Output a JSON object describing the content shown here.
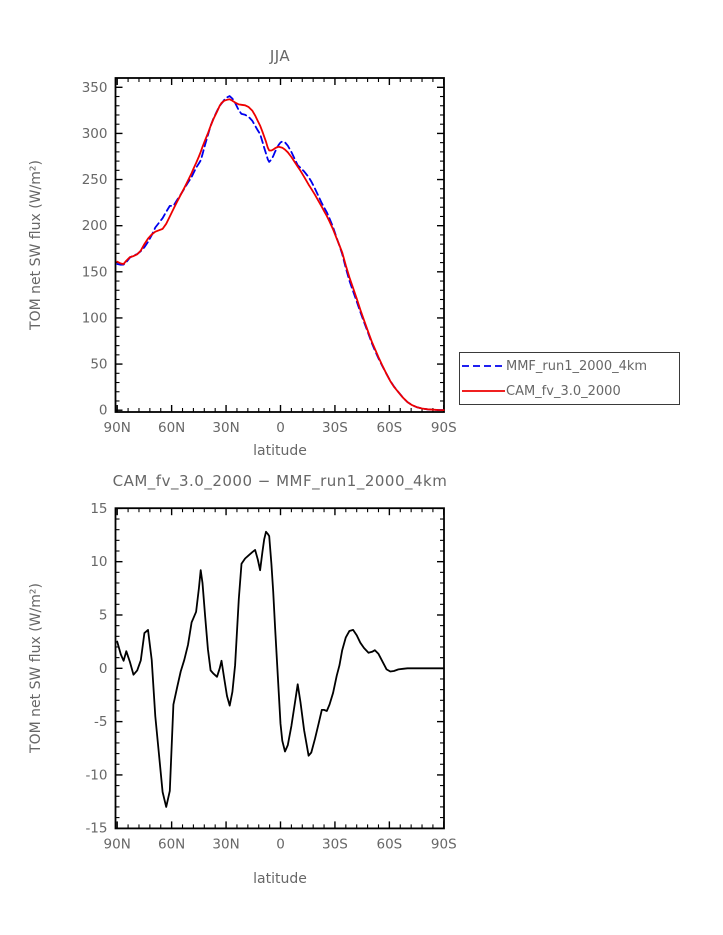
{
  "page_background": "#ffffff",
  "colors": {
    "axis": "#000000",
    "text": "#676767",
    "mmf_line": "#0000ee",
    "cam_line": "#ee0000",
    "diff_line": "#000000"
  },
  "legend": {
    "entries": [
      {
        "label": "MMF_run1_2000_4km",
        "color": "#0000ee",
        "style": "dashed"
      },
      {
        "label": "CAM_fv_3.0_2000",
        "color": "#ee0000",
        "style": "solid"
      }
    ]
  },
  "chart_data": [
    {
      "type": "line",
      "title": "JJA",
      "xlabel": "latitude",
      "ylabel": "TOM net SW flux (W/m²)",
      "ylim": [
        0,
        350
      ],
      "xlim_deg_north": [
        90,
        -90
      ],
      "grid": false,
      "legend_position": "outside-right-bottom",
      "x_ticks": {
        "major_lats": [
          90,
          60,
          30,
          0,
          -30,
          -60,
          -90
        ],
        "major_labels": [
          "90N",
          "60N",
          "30N",
          "0",
          "30S",
          "60S",
          "90S"
        ],
        "minor_step_deg": 6
      },
      "y_ticks": {
        "major_values": [
          0,
          50,
          100,
          150,
          200,
          250,
          300,
          350
        ],
        "major_labels": [
          "0",
          "50",
          "100",
          "150",
          "200",
          "250",
          "300",
          "350"
        ],
        "minor_step": 10
      },
      "x": [
        90,
        88,
        86.5,
        85,
        83,
        81,
        79,
        77,
        75,
        73,
        71,
        69,
        67,
        65,
        63,
        61,
        59,
        57,
        55,
        53,
        51,
        49,
        48,
        46.5,
        45,
        44,
        43,
        41.5,
        40,
        38.5,
        37,
        35,
        33.5,
        32.5,
        31,
        29.5,
        28,
        26.5,
        25,
        23,
        21.5,
        19.5,
        17.5,
        15.5,
        14,
        12.5,
        11.25,
        10,
        9,
        8,
        7,
        6.25,
        5,
        4,
        3,
        2,
        1,
        0,
        -1,
        -2.5,
        -4,
        -6,
        -8,
        -9.5,
        -11,
        -13,
        -15.5,
        -17,
        -19,
        -21,
        -22.75,
        -24,
        -25.5,
        -27,
        -29,
        -31,
        -32.5,
        -34,
        -36,
        -38,
        -40,
        -42,
        -44,
        -46,
        -48.5,
        -50.5,
        -52,
        -54,
        -56,
        -58.5,
        -60.5,
        -62.5,
        -65,
        -67.5,
        -70,
        -72.5,
        -75,
        -78,
        -81,
        -84,
        -87,
        -90
      ],
      "series": [
        {
          "name": "MMF_run1_2000_4km",
          "color": "#0000ee",
          "style": "dashed",
          "values": [
            158.5,
            157.7,
            157.8,
            160.4,
            165.4,
            167.6,
            169.2,
            172.3,
            176.7,
            182.4,
            189.7,
            198,
            203,
            208.1,
            215,
            221.5,
            221.4,
            227.8,
            233.8,
            240.2,
            246.8,
            252.7,
            256.8,
            262.7,
            267.5,
            270.8,
            277.5,
            288.2,
            298.2,
            308.2,
            316,
            324.3,
            330,
            332.3,
            336.5,
            339.1,
            340.5,
            337.7,
            333.2,
            325,
            321.2,
            320.2,
            317.9,
            313.6,
            308.4,
            303.3,
            299.3,
            291.1,
            284.4,
            278.2,
            271.9,
            269.1,
            271.7,
            275.3,
            280.2,
            284.2,
            287.7,
            290.2,
            291.3,
            290.3,
            286.7,
            279.9,
            271.7,
            265.5,
            262.7,
            258.8,
            252.7,
            247.9,
            240.1,
            231.7,
            224.4,
            219.9,
            214.5,
            207.9,
            198.3,
            186.7,
            178.2,
            169.3,
            154.1,
            140.5,
            128.9,
            117.9,
            106.6,
            95.6,
            82.6,
            72,
            64.8,
            56.2,
            48.3,
            39.1,
            31.8,
            25.8,
            19.6,
            13.6,
            8.8,
            5.5,
            3.4,
            1.8,
            1,
            0.5,
            0.2,
            0.1
          ]
        },
        {
          "name": "CAM_fv_3.0_2000",
          "color": "#ee0000",
          "style": "solid",
          "values": [
            161,
            159,
            158.5,
            162,
            166,
            167,
            169,
            173,
            180,
            186,
            190.5,
            193.5,
            195,
            196.5,
            202,
            210,
            218,
            226,
            233.5,
            241,
            249,
            257,
            261.5,
            268,
            275,
            280,
            285.5,
            293,
            300,
            308,
            315.5,
            323.5,
            330,
            333,
            335.5,
            336.5,
            337,
            335.5,
            333.5,
            331.5,
            331,
            330.5,
            328.5,
            324.5,
            319.5,
            313.5,
            308.5,
            302,
            296.5,
            291,
            284.5,
            281.5,
            281.5,
            282.5,
            284,
            285,
            285.5,
            285,
            284.5,
            282.5,
            279.5,
            274.5,
            268.5,
            264,
            259.5,
            253,
            244.5,
            240,
            233.5,
            226.5,
            220.5,
            216,
            210.5,
            204.5,
            196,
            186,
            178.5,
            171,
            157,
            144,
            132.5,
            121,
            109,
            97.5,
            84,
            73.5,
            66.5,
            57.5,
            49,
            39,
            31.5,
            25.5,
            19.5,
            13.5,
            8.8,
            5.5,
            3.4,
            1.8,
            1,
            0.5,
            0.2,
            0.1
          ]
        }
      ]
    },
    {
      "type": "line",
      "title": "CAM_fv_3.0_2000 − MMF_run1_2000_4km",
      "xlabel": "latitude",
      "ylabel": "TOM net SW flux (W/m²)",
      "ylim": [
        -15,
        15
      ],
      "xlim_deg_north": [
        90,
        -90
      ],
      "grid": false,
      "x_ticks": {
        "major_lats": [
          90,
          60,
          30,
          0,
          -30,
          -60,
          -90
        ],
        "major_labels": [
          "90N",
          "60N",
          "30N",
          "0",
          "30S",
          "60S",
          "90S"
        ],
        "minor_step_deg": 6
      },
      "y_ticks": {
        "major_values": [
          -15,
          -10,
          -5,
          0,
          5,
          10,
          15
        ],
        "major_labels": [
          "-15",
          "-10",
          "-5",
          "0",
          "5",
          "10",
          "15"
        ],
        "minor_step": 1
      },
      "x": [
        90,
        88,
        86.5,
        85,
        83,
        81,
        79,
        77,
        75,
        73,
        71,
        69,
        67,
        65,
        63,
        61,
        59,
        57,
        55,
        53,
        51,
        49,
        48,
        46.5,
        45,
        44,
        43,
        41.5,
        40,
        38.5,
        37,
        35,
        33.5,
        32.5,
        31,
        29.5,
        28,
        26.5,
        25,
        23,
        21.5,
        19.5,
        17.5,
        15.5,
        14,
        12.5,
        11.25,
        10,
        9,
        8,
        7,
        6.25,
        5,
        4,
        3,
        2,
        1,
        0,
        -1,
        -2.5,
        -4,
        -6,
        -8,
        -9.5,
        -11,
        -13,
        -15.5,
        -17,
        -19,
        -21,
        -22.75,
        -24,
        -25.5,
        -27,
        -29,
        -31,
        -32.5,
        -34,
        -36,
        -38,
        -40,
        -42,
        -44,
        -46,
        -48.5,
        -50.5,
        -52,
        -54,
        -56,
        -58.5,
        -60.5,
        -62.5,
        -65,
        -67.5,
        -70,
        -72.5,
        -75,
        -78,
        -81,
        -84,
        -87,
        -90
      ],
      "series": [
        {
          "name": "CAM_fv_3.0_2000 - MMF_run1_2000_4km",
          "color": "#000000",
          "style": "solid",
          "values": [
            2.5,
            1.3,
            0.7,
            1.6,
            0.6,
            -0.6,
            -0.2,
            0.75,
            3.3,
            3.6,
            0.8,
            -4.5,
            -8,
            -11.6,
            -13,
            -11.5,
            -3.4,
            -1.8,
            -0.3,
            0.8,
            2.2,
            4.3,
            4.7,
            5.3,
            7.5,
            9.2,
            8,
            4.8,
            1.8,
            -0.2,
            -0.5,
            -0.8,
            0,
            0.7,
            -1,
            -2.6,
            -3.5,
            -2.2,
            0.3,
            6.5,
            9.8,
            10.3,
            10.6,
            10.9,
            11.1,
            10.2,
            9.2,
            10.9,
            12.1,
            12.8,
            12.6,
            12.4,
            9.8,
            7.2,
            3.8,
            0.8,
            -2.2,
            -5.2,
            -6.8,
            -7.8,
            -7.2,
            -5.4,
            -3.2,
            -1.5,
            -3.2,
            -5.8,
            -8.2,
            -7.9,
            -6.6,
            -5.2,
            -3.9,
            -3.9,
            -4,
            -3.4,
            -2.3,
            -0.7,
            0.3,
            1.7,
            2.9,
            3.5,
            3.6,
            3.1,
            2.4,
            1.9,
            1.45,
            1.55,
            1.7,
            1.35,
            0.7,
            -0.1,
            -0.3,
            -0.25,
            -0.1,
            -0.05,
            0,
            0,
            0,
            0,
            0,
            0,
            0,
            0
          ]
        }
      ]
    }
  ]
}
